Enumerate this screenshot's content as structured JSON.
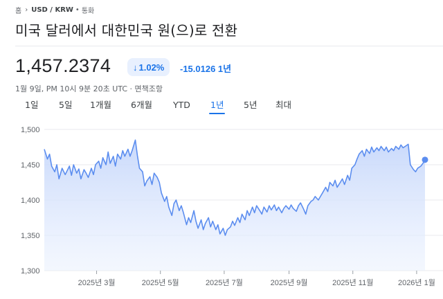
{
  "breadcrumb": {
    "home": "홈",
    "pair": "USD / KRW",
    "category": "통화"
  },
  "title": "미국 달러에서 대한민국 원(으)로 전환",
  "price": "1,457.2374",
  "change": {
    "percent": "1.02%",
    "absolute": "-15.0126 1년",
    "direction": "down"
  },
  "timestamp": "1월 9일, PM 10시 9분 20초 UTC · 면책조항",
  "tabs": [
    "1일",
    "5일",
    "1개월",
    "6개월",
    "YTD",
    "1년",
    "5년",
    "최대"
  ],
  "active_tab": "1년",
  "colors": {
    "accent": "#1a73e8",
    "line": "#5b8def",
    "fill_top": "#c6d7fb"
  },
  "chart_data": {
    "type": "area",
    "ylim": [
      1300,
      1500
    ],
    "yticks": [
      1500,
      1450,
      1400,
      1350,
      1300
    ],
    "ytick_labels": [
      "1,500",
      "1,450",
      "1,400",
      "1,350",
      "1,300"
    ],
    "xticks": [
      "2025-03-01",
      "2025-05-01",
      "2025-07-01",
      "2025-09-01",
      "2025-11-01",
      "2026-01-01"
    ],
    "xtick_labels": [
      "2025년 3월",
      "2025년 5월",
      "2025년 7월",
      "2025년 9월",
      "2025년 11월",
      "2026년 1월"
    ],
    "xlim": [
      "2025-01-10",
      "2026-01-09"
    ],
    "grid": true,
    "points": [
      [
        "2025-01-10",
        1472
      ],
      [
        "2025-01-13",
        1458
      ],
      [
        "2025-01-15",
        1465
      ],
      [
        "2025-01-17",
        1448
      ],
      [
        "2025-01-20",
        1440
      ],
      [
        "2025-01-22",
        1450
      ],
      [
        "2025-01-24",
        1430
      ],
      [
        "2025-01-27",
        1445
      ],
      [
        "2025-01-30",
        1436
      ],
      [
        "2025-02-03",
        1448
      ],
      [
        "2025-02-05",
        1435
      ],
      [
        "2025-02-07",
        1450
      ],
      [
        "2025-02-10",
        1438
      ],
      [
        "2025-02-12",
        1444
      ],
      [
        "2025-02-14",
        1430
      ],
      [
        "2025-02-17",
        1443
      ],
      [
        "2025-02-19",
        1438
      ],
      [
        "2025-02-21",
        1432
      ],
      [
        "2025-02-24",
        1445
      ],
      [
        "2025-02-26",
        1436
      ],
      [
        "2025-02-28",
        1450
      ],
      [
        "2025-03-03",
        1455
      ],
      [
        "2025-03-05",
        1445
      ],
      [
        "2025-03-07",
        1460
      ],
      [
        "2025-03-10",
        1450
      ],
      [
        "2025-03-12",
        1468
      ],
      [
        "2025-03-14",
        1452
      ],
      [
        "2025-03-17",
        1462
      ],
      [
        "2025-03-19",
        1448
      ],
      [
        "2025-03-21",
        1465
      ],
      [
        "2025-03-24",
        1458
      ],
      [
        "2025-03-26",
        1470
      ],
      [
        "2025-03-28",
        1462
      ],
      [
        "2025-03-31",
        1472
      ],
      [
        "2025-04-02",
        1462
      ],
      [
        "2025-04-04",
        1470
      ],
      [
        "2025-04-07",
        1485
      ],
      [
        "2025-04-09",
        1463
      ],
      [
        "2025-04-11",
        1445
      ],
      [
        "2025-04-14",
        1440
      ],
      [
        "2025-04-16",
        1420
      ],
      [
        "2025-04-18",
        1427
      ],
      [
        "2025-04-21",
        1433
      ],
      [
        "2025-04-23",
        1422
      ],
      [
        "2025-04-25",
        1438
      ],
      [
        "2025-04-28",
        1432
      ],
      [
        "2025-04-30",
        1425
      ],
      [
        "2025-05-02",
        1410
      ],
      [
        "2025-05-05",
        1398
      ],
      [
        "2025-05-07",
        1405
      ],
      [
        "2025-05-09",
        1390
      ],
      [
        "2025-05-12",
        1378
      ],
      [
        "2025-05-14",
        1395
      ],
      [
        "2025-05-16",
        1400
      ],
      [
        "2025-05-19",
        1385
      ],
      [
        "2025-05-21",
        1392
      ],
      [
        "2025-05-23",
        1382
      ],
      [
        "2025-05-26",
        1365
      ],
      [
        "2025-05-28",
        1375
      ],
      [
        "2025-05-30",
        1368
      ],
      [
        "2025-06-02",
        1385
      ],
      [
        "2025-06-04",
        1370
      ],
      [
        "2025-06-06",
        1360
      ],
      [
        "2025-06-09",
        1372
      ],
      [
        "2025-06-11",
        1358
      ],
      [
        "2025-06-13",
        1367
      ],
      [
        "2025-06-16",
        1375
      ],
      [
        "2025-06-18",
        1362
      ],
      [
        "2025-06-20",
        1370
      ],
      [
        "2025-06-23",
        1358
      ],
      [
        "2025-06-25",
        1365
      ],
      [
        "2025-06-27",
        1352
      ],
      [
        "2025-06-30",
        1360
      ],
      [
        "2025-07-02",
        1350
      ],
      [
        "2025-07-04",
        1358
      ],
      [
        "2025-07-07",
        1362
      ],
      [
        "2025-07-09",
        1370
      ],
      [
        "2025-07-11",
        1364
      ],
      [
        "2025-07-14",
        1375
      ],
      [
        "2025-07-16",
        1368
      ],
      [
        "2025-07-18",
        1380
      ],
      [
        "2025-07-21",
        1372
      ],
      [
        "2025-07-23",
        1385
      ],
      [
        "2025-07-25",
        1378
      ],
      [
        "2025-07-28",
        1390
      ],
      [
        "2025-07-30",
        1382
      ],
      [
        "2025-08-01",
        1392
      ],
      [
        "2025-08-04",
        1385
      ],
      [
        "2025-08-06",
        1380
      ],
      [
        "2025-08-08",
        1390
      ],
      [
        "2025-08-11",
        1383
      ],
      [
        "2025-08-13",
        1392
      ],
      [
        "2025-08-15",
        1386
      ],
      [
        "2025-08-18",
        1393
      ],
      [
        "2025-08-20",
        1385
      ],
      [
        "2025-08-22",
        1390
      ],
      [
        "2025-08-25",
        1382
      ],
      [
        "2025-08-27",
        1388
      ],
      [
        "2025-08-29",
        1392
      ],
      [
        "2025-09-01",
        1387
      ],
      [
        "2025-09-03",
        1393
      ],
      [
        "2025-09-05",
        1388
      ],
      [
        "2025-09-08",
        1384
      ],
      [
        "2025-09-10",
        1392
      ],
      [
        "2025-09-12",
        1396
      ],
      [
        "2025-09-15",
        1387
      ],
      [
        "2025-09-17",
        1380
      ],
      [
        "2025-09-19",
        1392
      ],
      [
        "2025-09-22",
        1398
      ],
      [
        "2025-09-24",
        1400
      ],
      [
        "2025-09-26",
        1405
      ],
      [
        "2025-09-29",
        1400
      ],
      [
        "2025-10-01",
        1405
      ],
      [
        "2025-10-03",
        1410
      ],
      [
        "2025-10-06",
        1418
      ],
      [
        "2025-10-08",
        1412
      ],
      [
        "2025-10-10",
        1425
      ],
      [
        "2025-10-13",
        1420
      ],
      [
        "2025-10-15",
        1428
      ],
      [
        "2025-10-17",
        1418
      ],
      [
        "2025-10-20",
        1425
      ],
      [
        "2025-10-22",
        1430
      ],
      [
        "2025-10-24",
        1422
      ],
      [
        "2025-10-27",
        1435
      ],
      [
        "2025-10-29",
        1428
      ],
      [
        "2025-10-31",
        1445
      ],
      [
        "2025-11-03",
        1450
      ],
      [
        "2025-11-05",
        1458
      ],
      [
        "2025-11-07",
        1465
      ],
      [
        "2025-11-10",
        1470
      ],
      [
        "2025-11-12",
        1462
      ],
      [
        "2025-11-14",
        1472
      ],
      [
        "2025-11-17",
        1466
      ],
      [
        "2025-11-19",
        1475
      ],
      [
        "2025-11-21",
        1468
      ],
      [
        "2025-11-24",
        1474
      ],
      [
        "2025-11-26",
        1470
      ],
      [
        "2025-11-28",
        1476
      ],
      [
        "2025-12-01",
        1470
      ],
      [
        "2025-12-03",
        1475
      ],
      [
        "2025-12-05",
        1468
      ],
      [
        "2025-12-08",
        1473
      ],
      [
        "2025-12-10",
        1470
      ],
      [
        "2025-12-12",
        1476
      ],
      [
        "2025-12-15",
        1472
      ],
      [
        "2025-12-17",
        1478
      ],
      [
        "2025-12-19",
        1474
      ],
      [
        "2025-12-22",
        1477
      ],
      [
        "2025-12-24",
        1479
      ],
      [
        "2025-12-26",
        1450
      ],
      [
        "2025-12-29",
        1443
      ],
      [
        "2025-12-31",
        1440
      ],
      [
        "2026-01-02",
        1445
      ],
      [
        "2026-01-05",
        1448
      ],
      [
        "2026-01-07",
        1452
      ],
      [
        "2026-01-09",
        1457
      ]
    ]
  }
}
